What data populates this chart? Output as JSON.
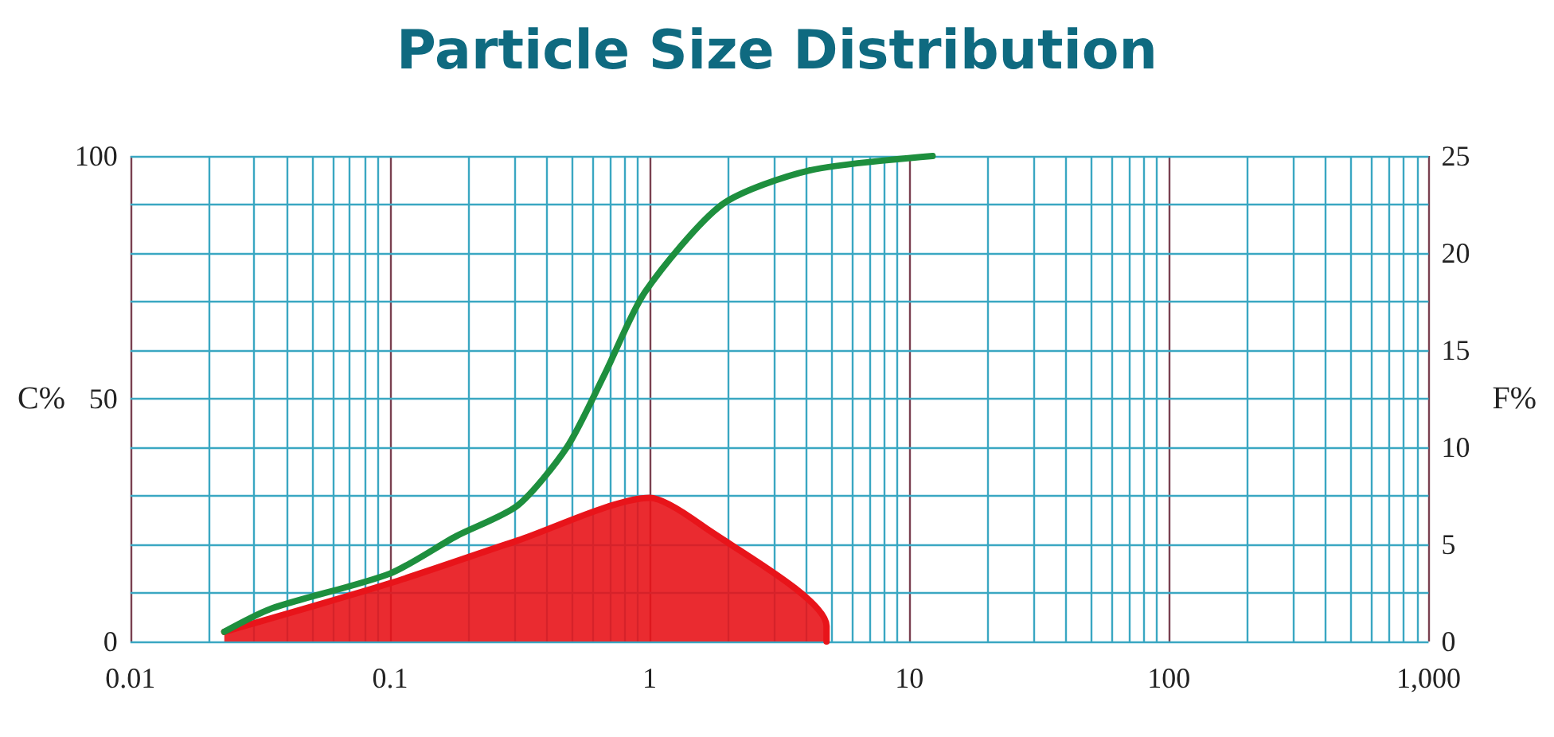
{
  "chart_data": {
    "type": "line",
    "title": "Particle Size Distribution",
    "ylabel": "C%",
    "y2label": "F%",
    "xlim": [
      0.01,
      1000
    ],
    "xticks": [
      0.01,
      0.1,
      1,
      10,
      100,
      {
        "value": 1000,
        "label": "1,000"
      }
    ],
    "log": "x",
    "ylim": [
      0,
      100
    ],
    "yticks": [
      0,
      {
        "value": 10,
        "label": null
      },
      {
        "value": 20,
        "label": null
      },
      {
        "value": 30,
        "label": null
      },
      {
        "value": 40,
        "label": null
      },
      50,
      {
        "value": 60,
        "label": null
      },
      {
        "value": 70,
        "label": null
      },
      {
        "value": 80,
        "label": null
      },
      {
        "value": 90,
        "label": null
      },
      100
    ],
    "y2lim": [
      0,
      25
    ],
    "y2ticks": [
      0,
      5,
      10,
      15,
      20,
      25
    ],
    "grid": true,
    "marker": "none",
    "line_style": "solid",
    "series": [
      {
        "type": "area",
        "axis": "y2",
        "color": "#e8141a",
        "x": [
          0.023,
          0.1,
          0.31,
          1.0,
          1.58,
          4.8,
          4.8
        ],
        "values": [
          0.5,
          3.0,
          5.2,
          7.4,
          6.0,
          0.8,
          0
        ]
      },
      {
        "color": "#1e8f3e",
        "x": [
          0.023,
          0.035,
          0.1,
          0.18,
          0.31,
          0.48,
          0.67,
          0.96,
          1.9,
          4.1,
          12.3
        ],
        "values": [
          2,
          6.8,
          14,
          21.7,
          28,
          40,
          55,
          72,
          90,
          97,
          100
        ]
      }
    ]
  }
}
